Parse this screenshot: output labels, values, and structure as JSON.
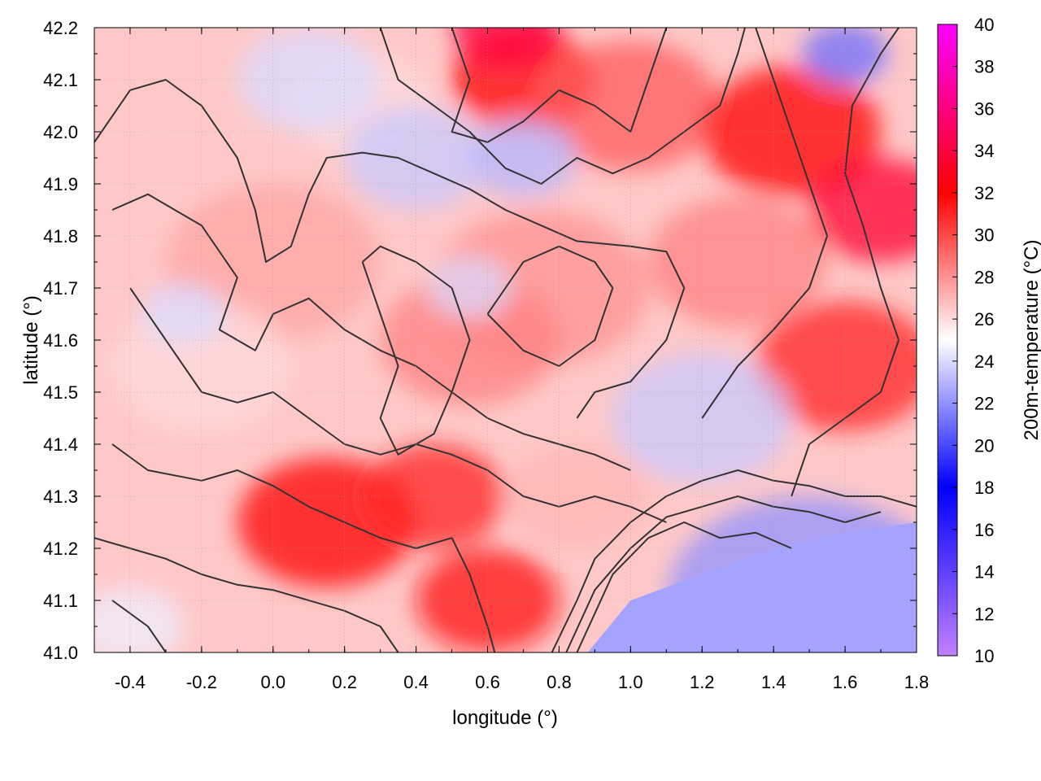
{
  "chart_data": {
    "type": "heatmap",
    "title": "",
    "xlabel": "longitude (°)",
    "ylabel": "latitude (°)",
    "colorbar_label": "200m-temperature (°C)",
    "xlim": [
      -0.5,
      1.8
    ],
    "ylim": [
      41.0,
      42.2
    ],
    "x_ticks": [
      -0.4,
      -0.2,
      0.0,
      0.2,
      0.4,
      0.6,
      0.8,
      1.0,
      1.2,
      1.4,
      1.6,
      1.8
    ],
    "x_tick_labels": [
      "-0.4",
      "-0.2",
      "0.0",
      "0.2",
      "0.4",
      "0.6",
      "0.8",
      "1.0",
      "1.2",
      "1.4",
      "1.6",
      "1.8"
    ],
    "y_ticks": [
      41.0,
      41.1,
      41.2,
      41.3,
      41.4,
      41.5,
      41.6,
      41.7,
      41.8,
      41.9,
      42.0,
      42.1,
      42.2
    ],
    "y_tick_labels": [
      "41.0",
      "41.1",
      "41.2",
      "41.3",
      "41.4",
      "41.5",
      "41.6",
      "41.7",
      "41.8",
      "41.9",
      "42.0",
      "42.1",
      "42.2"
    ],
    "colorbar": {
      "range": [
        10,
        40
      ],
      "ticks": [
        10,
        12,
        14,
        16,
        18,
        20,
        22,
        24,
        26,
        28,
        30,
        32,
        34,
        36,
        38,
        40
      ],
      "stops": [
        {
          "value": 10,
          "color": "#c080ff"
        },
        {
          "value": 18,
          "color": "#0000ff"
        },
        {
          "value": 25,
          "color": "#ffffff"
        },
        {
          "value": 32,
          "color": "#ff0000"
        },
        {
          "value": 40,
          "color": "#ff00ff"
        }
      ]
    },
    "grid": true,
    "contour_color": "#333333",
    "field_hotspots": [
      {
        "lon": -0.35,
        "lat": 41.9,
        "temp": 26.5,
        "spread": 0.3
      },
      {
        "lon": 0.0,
        "lat": 41.75,
        "temp": 27.5,
        "spread": 0.3
      },
      {
        "lon": -0.2,
        "lat": 41.55,
        "temp": 26.0,
        "spread": 0.25
      },
      {
        "lon": 0.15,
        "lat": 41.25,
        "temp": 32.0,
        "spread": 0.25
      },
      {
        "lon": 0.45,
        "lat": 41.3,
        "temp": 31.0,
        "spread": 0.2
      },
      {
        "lon": 0.6,
        "lat": 41.1,
        "temp": 31.5,
        "spread": 0.2
      },
      {
        "lon": 0.75,
        "lat": 41.7,
        "temp": 28.0,
        "spread": 0.3
      },
      {
        "lon": 0.55,
        "lat": 41.6,
        "temp": 28.5,
        "spread": 0.25
      },
      {
        "lon": 0.7,
        "lat": 42.1,
        "temp": 32.0,
        "spread": 0.2
      },
      {
        "lon": 1.0,
        "lat": 42.05,
        "temp": 29.5,
        "spread": 0.25
      },
      {
        "lon": 1.45,
        "lat": 42.0,
        "temp": 32.0,
        "spread": 0.25
      },
      {
        "lon": 1.7,
        "lat": 41.85,
        "temp": 33.5,
        "spread": 0.2
      },
      {
        "lon": 1.6,
        "lat": 41.55,
        "temp": 31.0,
        "spread": 0.25
      },
      {
        "lon": 1.3,
        "lat": 41.75,
        "temp": 28.5,
        "spread": 0.25
      },
      {
        "lon": 0.25,
        "lat": 42.05,
        "temp": 26.0,
        "spread": 0.2
      },
      {
        "lon": 0.85,
        "lat": 41.3,
        "temp": 27.0,
        "spread": 0.2
      },
      {
        "lon": 0.65,
        "lat": 42.2,
        "temp": 34.0,
        "spread": 0.15
      }
    ],
    "field_coldspots": [
      {
        "lon": 1.5,
        "lat": 41.1,
        "temp": 22.0,
        "spread": 0.4
      },
      {
        "lon": 1.2,
        "lat": 41.45,
        "temp": 23.5,
        "spread": 0.25
      },
      {
        "lon": 0.4,
        "lat": 41.95,
        "temp": 23.5,
        "spread": 0.2
      },
      {
        "lon": 0.7,
        "lat": 41.95,
        "temp": 23.0,
        "spread": 0.15
      },
      {
        "lon": 1.6,
        "lat": 42.15,
        "temp": 21.0,
        "spread": 0.12
      },
      {
        "lon": 0.1,
        "lat": 42.1,
        "temp": 24.0,
        "spread": 0.2
      },
      {
        "lon": 0.55,
        "lat": 41.7,
        "temp": 24.0,
        "spread": 0.12
      },
      {
        "lon": -0.4,
        "lat": 41.05,
        "temp": 24.5,
        "spread": 0.15
      },
      {
        "lon": -0.25,
        "lat": 41.65,
        "temp": 24.0,
        "spread": 0.12
      }
    ],
    "sea_region": {
      "boundary": [
        [
          0.88,
          41.0
        ],
        [
          1.0,
          41.1
        ],
        [
          1.2,
          41.15
        ],
        [
          1.4,
          41.2
        ],
        [
          1.6,
          41.23
        ],
        [
          1.8,
          41.25
        ]
      ],
      "temp": 22.5
    },
    "contours": [
      [
        [
          -0.5,
          41.98
        ],
        [
          -0.4,
          42.08
        ],
        [
          -0.3,
          42.1
        ],
        [
          -0.2,
          42.05
        ],
        [
          -0.1,
          41.95
        ],
        [
          -0.05,
          41.85
        ],
        [
          -0.02,
          41.75
        ],
        [
          0.05,
          41.78
        ],
        [
          0.1,
          41.88
        ],
        [
          0.15,
          41.95
        ],
        [
          0.25,
          41.96
        ],
        [
          0.35,
          41.95
        ],
        [
          0.45,
          41.92
        ],
        [
          0.55,
          41.89
        ],
        [
          0.65,
          41.85
        ],
        [
          0.75,
          41.82
        ],
        [
          0.85,
          41.79
        ],
        [
          1.0,
          41.78
        ],
        [
          1.1,
          41.77
        ],
        [
          1.15,
          41.7
        ],
        [
          1.1,
          41.6
        ],
        [
          1.0,
          41.52
        ],
        [
          0.9,
          41.5
        ],
        [
          0.85,
          41.45
        ]
      ],
      [
        [
          -0.45,
          41.85
        ],
        [
          -0.35,
          41.88
        ],
        [
          -0.2,
          41.82
        ],
        [
          -0.1,
          41.72
        ],
        [
          -0.15,
          41.62
        ],
        [
          -0.05,
          41.58
        ],
        [
          0.0,
          41.65
        ],
        [
          0.1,
          41.68
        ],
        [
          0.2,
          41.62
        ],
        [
          0.3,
          41.58
        ],
        [
          0.4,
          41.55
        ],
        [
          0.5,
          41.5
        ],
        [
          0.6,
          41.45
        ],
        [
          0.7,
          41.42
        ],
        [
          0.8,
          41.4
        ],
        [
          0.9,
          41.38
        ],
        [
          1.0,
          41.35
        ]
      ],
      [
        [
          -0.4,
          41.7
        ],
        [
          -0.3,
          41.6
        ],
        [
          -0.2,
          41.5
        ],
        [
          -0.1,
          41.48
        ],
        [
          0.0,
          41.5
        ],
        [
          0.1,
          41.45
        ],
        [
          0.2,
          41.4
        ],
        [
          0.3,
          41.38
        ],
        [
          0.4,
          41.4
        ],
        [
          0.5,
          41.38
        ],
        [
          0.6,
          41.35
        ],
        [
          0.7,
          41.3
        ],
        [
          0.8,
          41.28
        ],
        [
          0.9,
          41.3
        ],
        [
          1.0,
          41.28
        ],
        [
          1.1,
          41.25
        ]
      ],
      [
        [
          -0.45,
          41.4
        ],
        [
          -0.35,
          41.35
        ],
        [
          -0.2,
          41.33
        ],
        [
          -0.1,
          41.35
        ],
        [
          0.0,
          41.32
        ],
        [
          0.1,
          41.28
        ],
        [
          0.2,
          41.25
        ],
        [
          0.3,
          41.22
        ],
        [
          0.4,
          41.2
        ],
        [
          0.5,
          41.22
        ],
        [
          0.55,
          41.15
        ],
        [
          0.6,
          41.05
        ],
        [
          0.62,
          41.0
        ]
      ],
      [
        [
          -0.5,
          41.22
        ],
        [
          -0.4,
          41.2
        ],
        [
          -0.3,
          41.18
        ],
        [
          -0.2,
          41.15
        ],
        [
          -0.1,
          41.13
        ],
        [
          0.0,
          41.12
        ],
        [
          0.1,
          41.1
        ],
        [
          0.2,
          41.08
        ],
        [
          0.3,
          41.05
        ],
        [
          0.35,
          41.0
        ]
      ],
      [
        [
          -0.45,
          41.1
        ],
        [
          -0.35,
          41.05
        ],
        [
          -0.3,
          41.0
        ]
      ],
      [
        [
          0.78,
          41.0
        ],
        [
          0.85,
          41.1
        ],
        [
          0.9,
          41.18
        ],
        [
          1.0,
          41.25
        ],
        [
          1.1,
          41.3
        ],
        [
          1.2,
          41.33
        ],
        [
          1.3,
          41.35
        ],
        [
          1.4,
          41.33
        ],
        [
          1.5,
          41.32
        ],
        [
          1.6,
          41.3
        ],
        [
          1.7,
          41.3
        ],
        [
          1.8,
          41.28
        ]
      ],
      [
        [
          0.82,
          41.0
        ],
        [
          0.9,
          41.12
        ],
        [
          1.0,
          41.2
        ],
        [
          1.1,
          41.26
        ],
        [
          1.2,
          41.28
        ],
        [
          1.3,
          41.3
        ],
        [
          1.4,
          41.28
        ],
        [
          1.5,
          41.27
        ],
        [
          1.6,
          41.25
        ],
        [
          1.7,
          41.27
        ]
      ],
      [
        [
          0.85,
          41.0
        ],
        [
          0.95,
          41.15
        ],
        [
          1.05,
          41.22
        ],
        [
          1.15,
          41.25
        ],
        [
          1.25,
          41.22
        ],
        [
          1.35,
          41.23
        ],
        [
          1.45,
          41.2
        ]
      ],
      [
        [
          1.2,
          41.45
        ],
        [
          1.3,
          41.55
        ],
        [
          1.4,
          41.62
        ],
        [
          1.5,
          41.7
        ],
        [
          1.55,
          41.8
        ],
        [
          1.5,
          41.9
        ],
        [
          1.45,
          42.0
        ],
        [
          1.4,
          42.1
        ],
        [
          1.35,
          42.2
        ]
      ],
      [
        [
          1.45,
          41.3
        ],
        [
          1.5,
          41.4
        ],
        [
          1.6,
          41.45
        ],
        [
          1.7,
          41.5
        ],
        [
          1.75,
          41.6
        ],
        [
          1.7,
          41.7
        ],
        [
          1.65,
          41.82
        ],
        [
          1.6,
          41.92
        ],
        [
          1.62,
          42.05
        ],
        [
          1.7,
          42.15
        ],
        [
          1.75,
          42.2
        ]
      ],
      [
        [
          0.5,
          42.2
        ],
        [
          0.55,
          42.1
        ],
        [
          0.5,
          42.0
        ],
        [
          0.6,
          41.98
        ],
        [
          0.7,
          42.02
        ],
        [
          0.8,
          42.08
        ],
        [
          0.9,
          42.05
        ],
        [
          1.0,
          42.0
        ],
        [
          1.05,
          42.1
        ],
        [
          1.1,
          42.2
        ]
      ],
      [
        [
          0.3,
          42.2
        ],
        [
          0.35,
          42.1
        ],
        [
          0.45,
          42.05
        ],
        [
          0.55,
          42.0
        ],
        [
          0.65,
          41.93
        ],
        [
          0.75,
          41.9
        ],
        [
          0.85,
          41.95
        ],
        [
          0.95,
          41.92
        ],
        [
          1.05,
          41.95
        ],
        [
          1.15,
          42.0
        ],
        [
          1.25,
          42.05
        ],
        [
          1.3,
          42.15
        ],
        [
          1.32,
          42.2
        ]
      ],
      [
        [
          0.25,
          41.75
        ],
        [
          0.3,
          41.65
        ],
        [
          0.35,
          41.55
        ],
        [
          0.3,
          41.45
        ],
        [
          0.35,
          41.38
        ],
        [
          0.45,
          41.42
        ],
        [
          0.5,
          41.5
        ],
        [
          0.55,
          41.6
        ],
        [
          0.5,
          41.7
        ],
        [
          0.4,
          41.75
        ],
        [
          0.3,
          41.78
        ],
        [
          0.25,
          41.75
        ]
      ],
      [
        [
          0.6,
          41.65
        ],
        [
          0.7,
          41.58
        ],
        [
          0.8,
          41.55
        ],
        [
          0.9,
          41.6
        ],
        [
          0.95,
          41.7
        ],
        [
          0.9,
          41.75
        ],
        [
          0.8,
          41.78
        ],
        [
          0.7,
          41.75
        ],
        [
          0.6,
          41.65
        ]
      ]
    ]
  }
}
